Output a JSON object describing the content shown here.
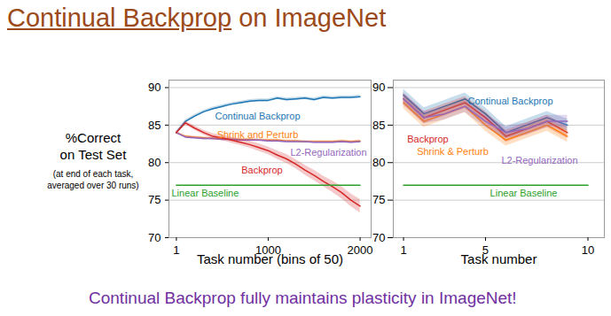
{
  "slide": {
    "title": "Continual Backprop on ImageNet",
    "title_link": "Continual Backprop",
    "y_label": [
      "%Correct",
      "on Test Set"
    ],
    "y_note": [
      "(at end of each task,",
      "averaged over 30 runs)"
    ],
    "footer": "Continual Backprop fully maintains plasticity in ImageNet!"
  },
  "chart_data": [
    {
      "type": "line",
      "x_label": "Task number (bins of 50)",
      "xlim": [
        -80,
        2120
      ],
      "xticks": [
        1,
        1000,
        2000
      ],
      "ylim": [
        70,
        91
      ],
      "yticks": [
        70,
        75,
        80,
        85,
        90
      ],
      "grid": true,
      "x": [
        1,
        100,
        200,
        300,
        400,
        500,
        600,
        700,
        800,
        900,
        1000,
        1100,
        1200,
        1300,
        1400,
        1500,
        1600,
        1700,
        1800,
        1900,
        2000
      ],
      "series": [
        {
          "name": "Continual Backprop",
          "color": "#1f77b4",
          "values": [
            84,
            85.5,
            86.2,
            86.8,
            87.2,
            87.5,
            87.8,
            88,
            88.2,
            88.3,
            88.3,
            88.6,
            88.4,
            88.5,
            88.6,
            88.4,
            88.7,
            88.6,
            88.7,
            88.7,
            88.8
          ],
          "error": [
            0.2,
            0.2,
            0.2,
            0.2,
            0.2,
            0.2,
            0.2,
            0.2,
            0.2,
            0.2,
            0.2,
            0.2,
            0.2,
            0.2,
            0.2,
            0.2,
            0.2,
            0.2,
            0.2,
            0.2,
            0.2
          ]
        },
        {
          "name": "Shrink and Perturb",
          "color": "#ff7f0e",
          "values": [
            84,
            83.5,
            83.4,
            83.3,
            83.2,
            83.2,
            83.1,
            83.1,
            83.1,
            83,
            83,
            83,
            82.9,
            82.9,
            82.8,
            82.8,
            82.8,
            82.8,
            82.9,
            82.8,
            82.9
          ],
          "error": [
            0.15,
            0.15,
            0.15,
            0.15,
            0.15,
            0.15,
            0.15,
            0.15,
            0.15,
            0.15,
            0.15,
            0.15,
            0.15,
            0.15,
            0.15,
            0.15,
            0.15,
            0.15,
            0.15,
            0.15,
            0.15
          ]
        },
        {
          "name": "L2-Regularization",
          "color": "#9467bd",
          "values": [
            84,
            83.4,
            83.3,
            83.2,
            83.2,
            83.1,
            83.1,
            83,
            83,
            83,
            82.9,
            82.9,
            82.8,
            82.8,
            82.8,
            82.7,
            82.7,
            82.7,
            82.8,
            82.7,
            82.8
          ],
          "error": [
            0.15,
            0.15,
            0.15,
            0.15,
            0.15,
            0.15,
            0.15,
            0.15,
            0.15,
            0.15,
            0.15,
            0.15,
            0.15,
            0.15,
            0.15,
            0.15,
            0.15,
            0.15,
            0.15,
            0.15,
            0.15
          ]
        },
        {
          "name": "Backprop",
          "color": "#d62728",
          "values": [
            84,
            85.3,
            84.6,
            84,
            83.5,
            83.3,
            83,
            82.7,
            82.4,
            82,
            81.6,
            81,
            80.5,
            79.8,
            79,
            78.3,
            77.5,
            76.8,
            76,
            75,
            74.2
          ],
          "error": [
            0.2,
            0.25,
            0.3,
            0.3,
            0.35,
            0.35,
            0.4,
            0.4,
            0.45,
            0.5,
            0.5,
            0.55,
            0.6,
            0.6,
            0.65,
            0.7,
            0.7,
            0.75,
            0.8,
            0.85,
            0.9
          ]
        },
        {
          "name": "Linear Baseline",
          "color": "#2ca02c",
          "x": [
            1,
            2000
          ],
          "values": [
            77,
            77
          ]
        }
      ]
    },
    {
      "type": "line",
      "x_label": "Task number",
      "xlim": [
        0.5,
        10.8
      ],
      "xticks": [
        1,
        5,
        10
      ],
      "ylim": [
        70,
        91
      ],
      "yticks": [
        70,
        75,
        80,
        85,
        90
      ],
      "grid": true,
      "tick_labels": "x",
      "x": [
        1,
        2,
        3,
        4,
        5,
        6,
        7,
        8,
        9
      ],
      "series": [
        {
          "name": "Continual Backprop",
          "color": "#1f77b4",
          "values": [
            89,
            86.5,
            87.5,
            88.5,
            86.5,
            84,
            85,
            86,
            85
          ],
          "error": [
            0.8,
            0.8,
            0.8,
            0.8,
            0.8,
            0.8,
            0.8,
            0.8,
            0.8
          ]
        },
        {
          "name": "Backprop",
          "color": "#d62728",
          "values": [
            88.5,
            86,
            87,
            88,
            86,
            83.5,
            84.5,
            85.5,
            84
          ],
          "error": [
            0.8,
            0.8,
            0.8,
            0.8,
            0.8,
            0.8,
            0.8,
            0.8,
            0.8
          ]
        },
        {
          "name": "Shrink & Perturb",
          "color": "#ff7f0e",
          "values": [
            88,
            85.5,
            86.5,
            87.5,
            85,
            83,
            84,
            85,
            83.5
          ],
          "error": [
            0.8,
            0.8,
            0.8,
            0.8,
            0.8,
            0.8,
            0.8,
            0.8,
            0.8
          ]
        },
        {
          "name": "L2-Regularization",
          "color": "#9467bd",
          "values": [
            88.5,
            86,
            86.5,
            87.5,
            85.5,
            84,
            84.5,
            85.5,
            85.5
          ],
          "error": [
            0.8,
            0.8,
            0.8,
            0.8,
            0.8,
            0.8,
            0.8,
            0.8,
            0.8
          ]
        },
        {
          "name": "Linear Baseline",
          "color": "#2ca02c",
          "x": [
            1,
            10
          ],
          "values": [
            77,
            77
          ]
        }
      ]
    }
  ]
}
